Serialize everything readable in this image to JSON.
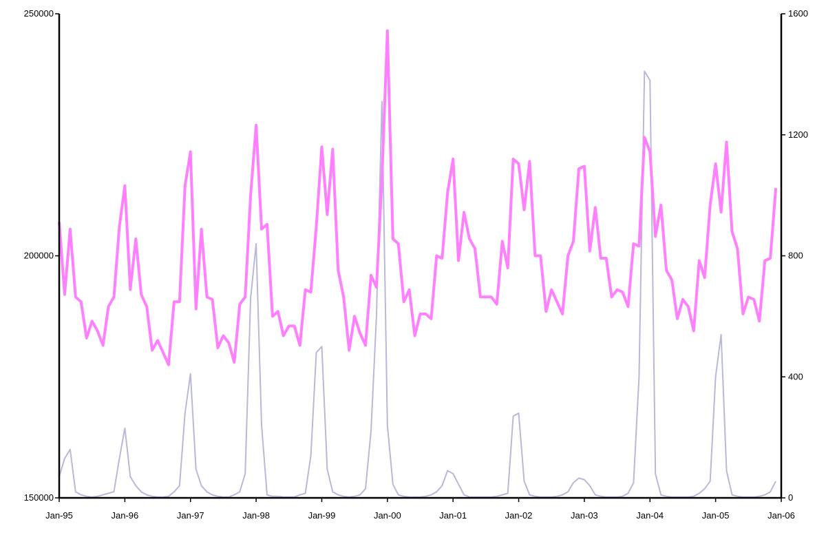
{
  "chart_data": {
    "type": "line",
    "title": "",
    "xlabel": "",
    "ylabel": "",
    "y2label": "",
    "x_ticks": [
      "Jan-95",
      "Jan-96",
      "Jan-97",
      "Jan-98",
      "Jan-99",
      "Jan-00",
      "Jan-01",
      "Jan-02",
      "Jan-03",
      "Jan-04",
      "Jan-05",
      "Jan-06"
    ],
    "x_start": "1995-01",
    "ylim": [
      150000,
      250000
    ],
    "y_ticks": [
      150000,
      200000,
      250000
    ],
    "y2lim": [
      0,
      1600
    ],
    "y2_ticks": [
      0,
      400,
      800,
      1200,
      1600
    ],
    "grid": false,
    "legend": "none",
    "series": [
      {
        "axis": "left",
        "color": "#ff80ff",
        "values": [
          207000,
          192000,
          205500,
          191500,
          190500,
          183000,
          186500,
          184500,
          181500,
          189500,
          191500,
          206000,
          214500,
          193000,
          203500,
          192000,
          189500,
          180500,
          182500,
          180000,
          177500,
          190500,
          190500,
          214500,
          221500,
          189000,
          205500,
          191500,
          191000,
          181000,
          183500,
          182000,
          178000,
          190000,
          191500,
          212500,
          227000,
          205500,
          206500,
          187500,
          188500,
          183500,
          185500,
          185500,
          181500,
          193000,
          192500,
          206000,
          222500,
          208500,
          222000,
          197000,
          191500,
          180500,
          187500,
          184000,
          181500,
          196000,
          193500,
          216000,
          246500,
          203500,
          202500,
          190500,
          193000,
          183500,
          188000,
          188000,
          187000,
          200000,
          199500,
          213000,
          220000,
          199000,
          209000,
          203500,
          201500,
          191500,
          191500,
          191500,
          190000,
          203000,
          197500,
          220000,
          219000,
          209500,
          219500,
          200000,
          200000,
          188500,
          193000,
          190500,
          188000,
          200000,
          203000,
          218000,
          218500,
          201000,
          210000,
          199500,
          199500,
          191500,
          193000,
          192500,
          189500,
          202500,
          202000,
          224500,
          221500,
          204000,
          210500,
          197000,
          195000,
          187000,
          191000,
          189500,
          184500,
          199000,
          195500,
          210500,
          219000,
          209000,
          223500,
          205000,
          201500,
          188000,
          191500,
          191000,
          186500,
          199000,
          199500,
          214000
        ]
      },
      {
        "axis": "right",
        "color": "#b8b8d8",
        "values": [
          70,
          130,
          160,
          20,
          10,
          5,
          3,
          5,
          10,
          15,
          20,
          130,
          230,
          70,
          40,
          20,
          10,
          5,
          3,
          3,
          5,
          20,
          40,
          280,
          410,
          95,
          40,
          20,
          10,
          5,
          3,
          3,
          10,
          20,
          80,
          660,
          840,
          240,
          10,
          5,
          5,
          3,
          3,
          3,
          10,
          15,
          140,
          480,
          500,
          95,
          20,
          10,
          5,
          3,
          5,
          10,
          30,
          220,
          600,
          1310,
          240,
          45,
          10,
          5,
          3,
          3,
          3,
          5,
          10,
          20,
          40,
          90,
          80,
          45,
          10,
          3,
          3,
          3,
          3,
          3,
          5,
          10,
          15,
          270,
          280,
          55,
          10,
          5,
          3,
          3,
          3,
          5,
          10,
          20,
          50,
          65,
          60,
          40,
          10,
          5,
          3,
          3,
          3,
          5,
          15,
          50,
          400,
          1410,
          1380,
          80,
          10,
          5,
          3,
          3,
          3,
          3,
          5,
          15,
          30,
          55,
          400,
          540,
          90,
          10,
          5,
          3,
          3,
          3,
          5,
          10,
          20,
          55
        ]
      }
    ]
  }
}
